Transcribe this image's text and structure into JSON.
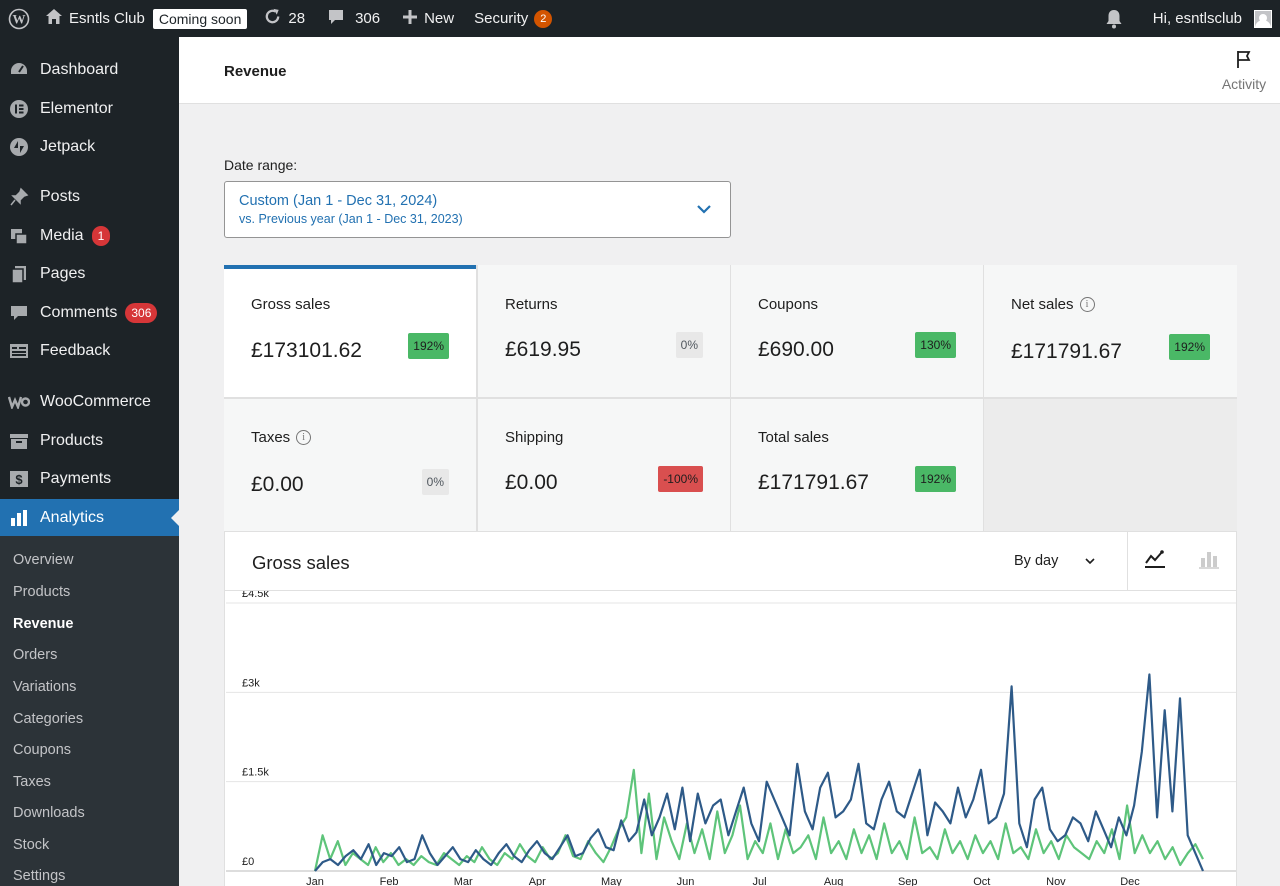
{
  "admin_bar": {
    "site_name": "Esntls Club",
    "coming_soon": "Coming soon",
    "updates_count": "28",
    "comments_count": "306",
    "new_label": "New",
    "security_label": "Security",
    "security_badge": "2",
    "greeting": "Hi, esntlsclub"
  },
  "sidebar": {
    "items": [
      {
        "label": "Dashboard",
        "icon": "dashboard-icon"
      },
      {
        "label": "Elementor",
        "icon": "elementor-icon"
      },
      {
        "label": "Jetpack",
        "icon": "jetpack-icon"
      },
      {
        "label": "Posts",
        "icon": "pin-icon"
      },
      {
        "label": "Media",
        "icon": "media-icon",
        "badge": "1"
      },
      {
        "label": "Pages",
        "icon": "pages-icon"
      },
      {
        "label": "Comments",
        "icon": "comment-icon",
        "badge": "306"
      },
      {
        "label": "Feedback",
        "icon": "feedback-icon"
      },
      {
        "label": "WooCommerce",
        "icon": "woocommerce-icon"
      },
      {
        "label": "Products",
        "icon": "archive-icon"
      },
      {
        "label": "Payments",
        "icon": "payments-icon"
      },
      {
        "label": "Analytics",
        "icon": "bar-chart-icon"
      }
    ],
    "submenu": [
      "Overview",
      "Products",
      "Revenue",
      "Orders",
      "Variations",
      "Categories",
      "Coupons",
      "Taxes",
      "Downloads",
      "Stock",
      "Settings"
    ],
    "current_submenu": "Revenue"
  },
  "header": {
    "title": "Revenue",
    "activity_label": "Activity"
  },
  "date_range": {
    "label": "Date range:",
    "primary": "Custom (Jan 1 - Dec 31, 2024)",
    "secondary": "vs. Previous year (Jan 1 - Dec 31, 2023)"
  },
  "summary": [
    {
      "label": "Gross sales",
      "value": "£173101.62",
      "delta": "192%",
      "trend": "up",
      "info": false
    },
    {
      "label": "Returns",
      "value": "£619.95",
      "delta": "0%",
      "trend": "neutral",
      "info": false
    },
    {
      "label": "Coupons",
      "value": "£690.00",
      "delta": "130%",
      "trend": "up",
      "info": false
    },
    {
      "label": "Net sales",
      "value": "£171791.67",
      "delta": "192%",
      "trend": "up",
      "info": true
    },
    {
      "label": "Taxes",
      "value": "£0.00",
      "delta": "0%",
      "trend": "neutral",
      "info": true
    },
    {
      "label": "Shipping",
      "value": "£0.00",
      "delta": "-100%",
      "trend": "down",
      "info": false
    },
    {
      "label": "Total sales",
      "value": "£171791.67",
      "delta": "192%",
      "trend": "up",
      "info": false
    }
  ],
  "chart_panel": {
    "title": "Gross sales",
    "interval": "By day",
    "line_icon": "line-chart-icon",
    "bar_icon": "bar-chart-icon"
  },
  "colors": {
    "current_series": "#2e5a88",
    "previous_series": "#5ec47a",
    "accent": "#2271b1"
  },
  "chart_data": {
    "type": "line",
    "title": "",
    "ylim": [
      0,
      4500
    ],
    "y_ticks": [
      "£0",
      "£1.5k",
      "£3k",
      "£4.5k"
    ],
    "y_tick_values": [
      0,
      1500,
      3000,
      4500
    ],
    "x_ticks": [
      "Jan",
      "Feb",
      "Mar",
      "Apr",
      "May",
      "Jun",
      "Jul",
      "Aug",
      "Sep",
      "Oct",
      "Nov",
      "Dec"
    ],
    "grid": true,
    "series": [
      {
        "values": [
          0,
          150,
          200,
          100,
          250,
          350,
          200,
          450,
          100,
          300,
          250,
          400,
          150,
          200,
          600,
          300,
          100,
          250,
          400,
          200,
          150,
          350,
          200,
          100,
          300,
          450,
          250,
          150,
          350,
          500,
          300,
          200,
          400,
          600,
          250,
          300,
          550,
          700,
          400,
          350,
          850,
          500,
          650,
          1200,
          600,
          900,
          1300,
          700,
          1400,
          500,
          1300,
          800,
          1100,
          1200,
          600,
          1000,
          1400,
          800,
          500,
          1500,
          1200,
          900,
          600,
          1800,
          1000,
          700,
          1400,
          1650,
          900,
          1000,
          1200,
          1800,
          800,
          700,
          1200,
          1500,
          1000,
          900,
          1300,
          1700,
          600,
          1150,
          1000,
          800,
          1400,
          900,
          1200,
          1700,
          800,
          900,
          1300,
          3100,
          800,
          400,
          1200,
          1400,
          700,
          500,
          600,
          900,
          800,
          500,
          1000,
          700,
          400,
          900,
          600,
          1100,
          2000,
          3300,
          900,
          2700,
          1000,
          2900,
          600,
          300,
          0
        ]
      },
      {
        "values": [
          0,
          600,
          200,
          500,
          100,
          300,
          200,
          100,
          400,
          150,
          300,
          100,
          200,
          100,
          250,
          150,
          100,
          300,
          200,
          100,
          250,
          150,
          400,
          200,
          100,
          300,
          200,
          450,
          250,
          150,
          400,
          200,
          300,
          600,
          250,
          200,
          500,
          300,
          150,
          400,
          700,
          900,
          1700,
          300,
          1300,
          200,
          900,
          500,
          200,
          800,
          300,
          700,
          200,
          1000,
          300,
          600,
          1100,
          200,
          500,
          300,
          800,
          200,
          700,
          300,
          400,
          600,
          200,
          900,
          300,
          500,
          200,
          700,
          300,
          600,
          200,
          800,
          300,
          500,
          200,
          900,
          300,
          400,
          200,
          700,
          300,
          500,
          200,
          600,
          300,
          500,
          200,
          800,
          300,
          400,
          200,
          700,
          300,
          500,
          200,
          600,
          400,
          300,
          200,
          500,
          300,
          700,
          200,
          1100,
          300,
          600,
          300,
          500,
          200,
          400,
          100,
          300,
          450,
          200
        ]
      }
    ]
  }
}
